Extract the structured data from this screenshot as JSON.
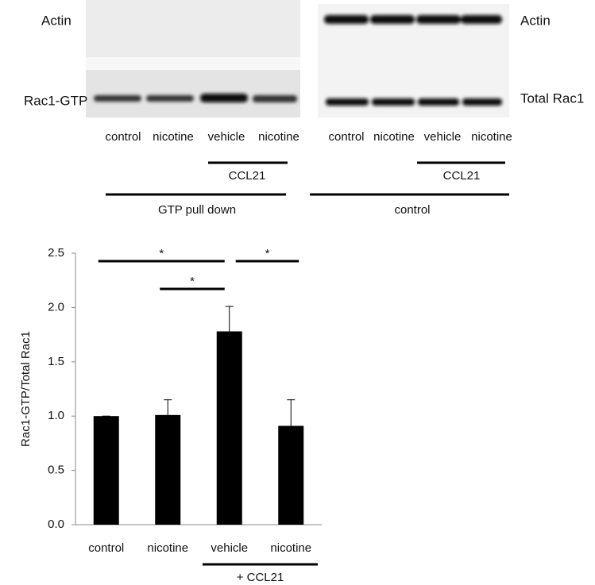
{
  "blots": {
    "left": {
      "bands": [
        "Actin",
        "Rac1-GTP"
      ],
      "lanes": [
        "control",
        "nicotine",
        "vehicle",
        "nicotine"
      ],
      "treatment": "CCL21",
      "group": "GTP pull down"
    },
    "right": {
      "bands": [
        "Actin",
        "Total Rac1"
      ],
      "lanes": [
        "control",
        "nicotine",
        "vehicle",
        "nicotine"
      ],
      "treatment": "CCL21",
      "group": "control"
    }
  },
  "chart_data": {
    "type": "bar",
    "y_label": "Rac1-GTP/Total Rac1",
    "categories": [
      "control",
      "nicotine",
      "vehicle",
      "nicotine"
    ],
    "values": [
      1.0,
      1.01,
      1.78,
      0.91
    ],
    "errors": [
      0,
      0.14,
      0.23,
      0.24
    ],
    "color": "#000000",
    "ylim": [
      0,
      2.5
    ],
    "yticks": [
      {
        "value": 0,
        "label": "0.0"
      },
      {
        "value": 0.5,
        "label": "0.5"
      },
      {
        "value": 1,
        "label": "1.0"
      },
      {
        "value": 1.5,
        "label": "1.5"
      },
      {
        "value": 2,
        "label": "2.0"
      },
      {
        "value": 2.5,
        "label": "2.5"
      }
    ],
    "group_label": "+ CCL21",
    "group_categories": [
      2,
      3
    ],
    "significance": [
      {
        "from": 0,
        "to": 2,
        "label": "*"
      },
      {
        "from": 1,
        "to": 2,
        "label": "*"
      },
      {
        "from": 2,
        "to": 3,
        "label": "*"
      }
    ]
  }
}
